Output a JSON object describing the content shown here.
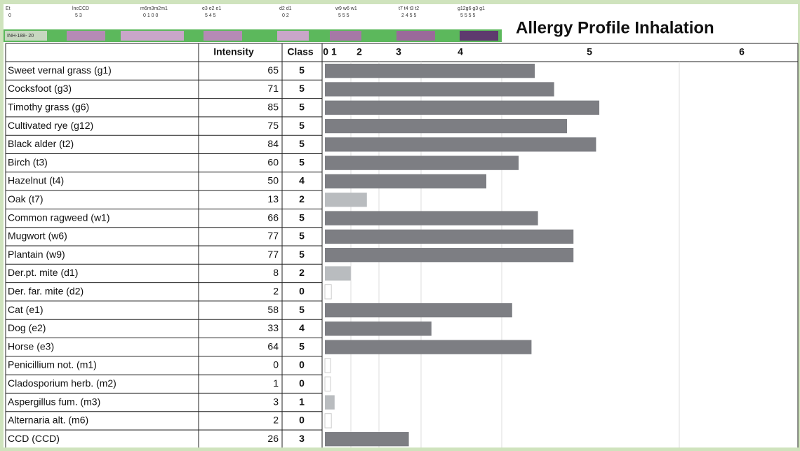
{
  "title": "Allergy Profile Inhalation",
  "strip": {
    "id": "INH-188- 20",
    "groups": [
      {
        "label": "Et",
        "classes": "0"
      },
      {
        "label": "lncCCD",
        "classes": "5 3"
      },
      {
        "label": "m6m3m2m1",
        "classes": "0 1 0 0"
      },
      {
        "label": "e3 e2 e1",
        "classes": "5 4 5"
      },
      {
        "label": "d2 d1",
        "classes": "0 2"
      },
      {
        "label": "w9 w6 w1",
        "classes": "5 5 5"
      },
      {
        "label": "t7 t4 t3 t2",
        "classes": "2 4 5 5"
      },
      {
        "label": "g12g6 g3 g1",
        "classes": "5 5 5 5"
      }
    ]
  },
  "columns": [
    "",
    "Intensity",
    "Class"
  ],
  "class_scale": [
    "0 1",
    "2",
    "3",
    "4",
    "5",
    "6"
  ],
  "colors": {
    "high": "#7d7e83",
    "low": "#b9bcbf",
    "none": "#ffffff"
  },
  "rows": [
    {
      "name": "Sweet vernal grass (g1)",
      "intensity": 65,
      "class": 5
    },
    {
      "name": "Cocksfoot (g3)",
      "intensity": 71,
      "class": 5
    },
    {
      "name": "Timothy grass (g6)",
      "intensity": 85,
      "class": 5
    },
    {
      "name": "Cultivated rye (g12)",
      "intensity": 75,
      "class": 5
    },
    {
      "name": "Black alder (t2)",
      "intensity": 84,
      "class": 5
    },
    {
      "name": "Birch (t3)",
      "intensity": 60,
      "class": 5
    },
    {
      "name": "Hazelnut (t4)",
      "intensity": 50,
      "class": 4
    },
    {
      "name": "Oak (t7)",
      "intensity": 13,
      "class": 2
    },
    {
      "name": "Common ragweed (w1)",
      "intensity": 66,
      "class": 5
    },
    {
      "name": "Mugwort (w6)",
      "intensity": 77,
      "class": 5
    },
    {
      "name": "Plantain (w9)",
      "intensity": 77,
      "class": 5
    },
    {
      "name": "Der.pt. mite (d1)",
      "intensity": 8,
      "class": 2
    },
    {
      "name": "Der. far. mite (d2)",
      "intensity": 2,
      "class": 0
    },
    {
      "name": "Cat (e1)",
      "intensity": 58,
      "class": 5
    },
    {
      "name": "Dog (e2)",
      "intensity": 33,
      "class": 4
    },
    {
      "name": "Horse (e3)",
      "intensity": 64,
      "class": 5
    },
    {
      "name": "Penicillium not. (m1)",
      "intensity": 0,
      "class": 0
    },
    {
      "name": "Cladosporium herb. (m2)",
      "intensity": 1,
      "class": 0
    },
    {
      "name": "Aspergillus fum. (m3)",
      "intensity": 3,
      "class": 1
    },
    {
      "name": "Alternaria alt. (m6)",
      "intensity": 2,
      "class": 0
    },
    {
      "name": "CCD (CCD)",
      "intensity": 26,
      "class": 3
    }
  ]
}
